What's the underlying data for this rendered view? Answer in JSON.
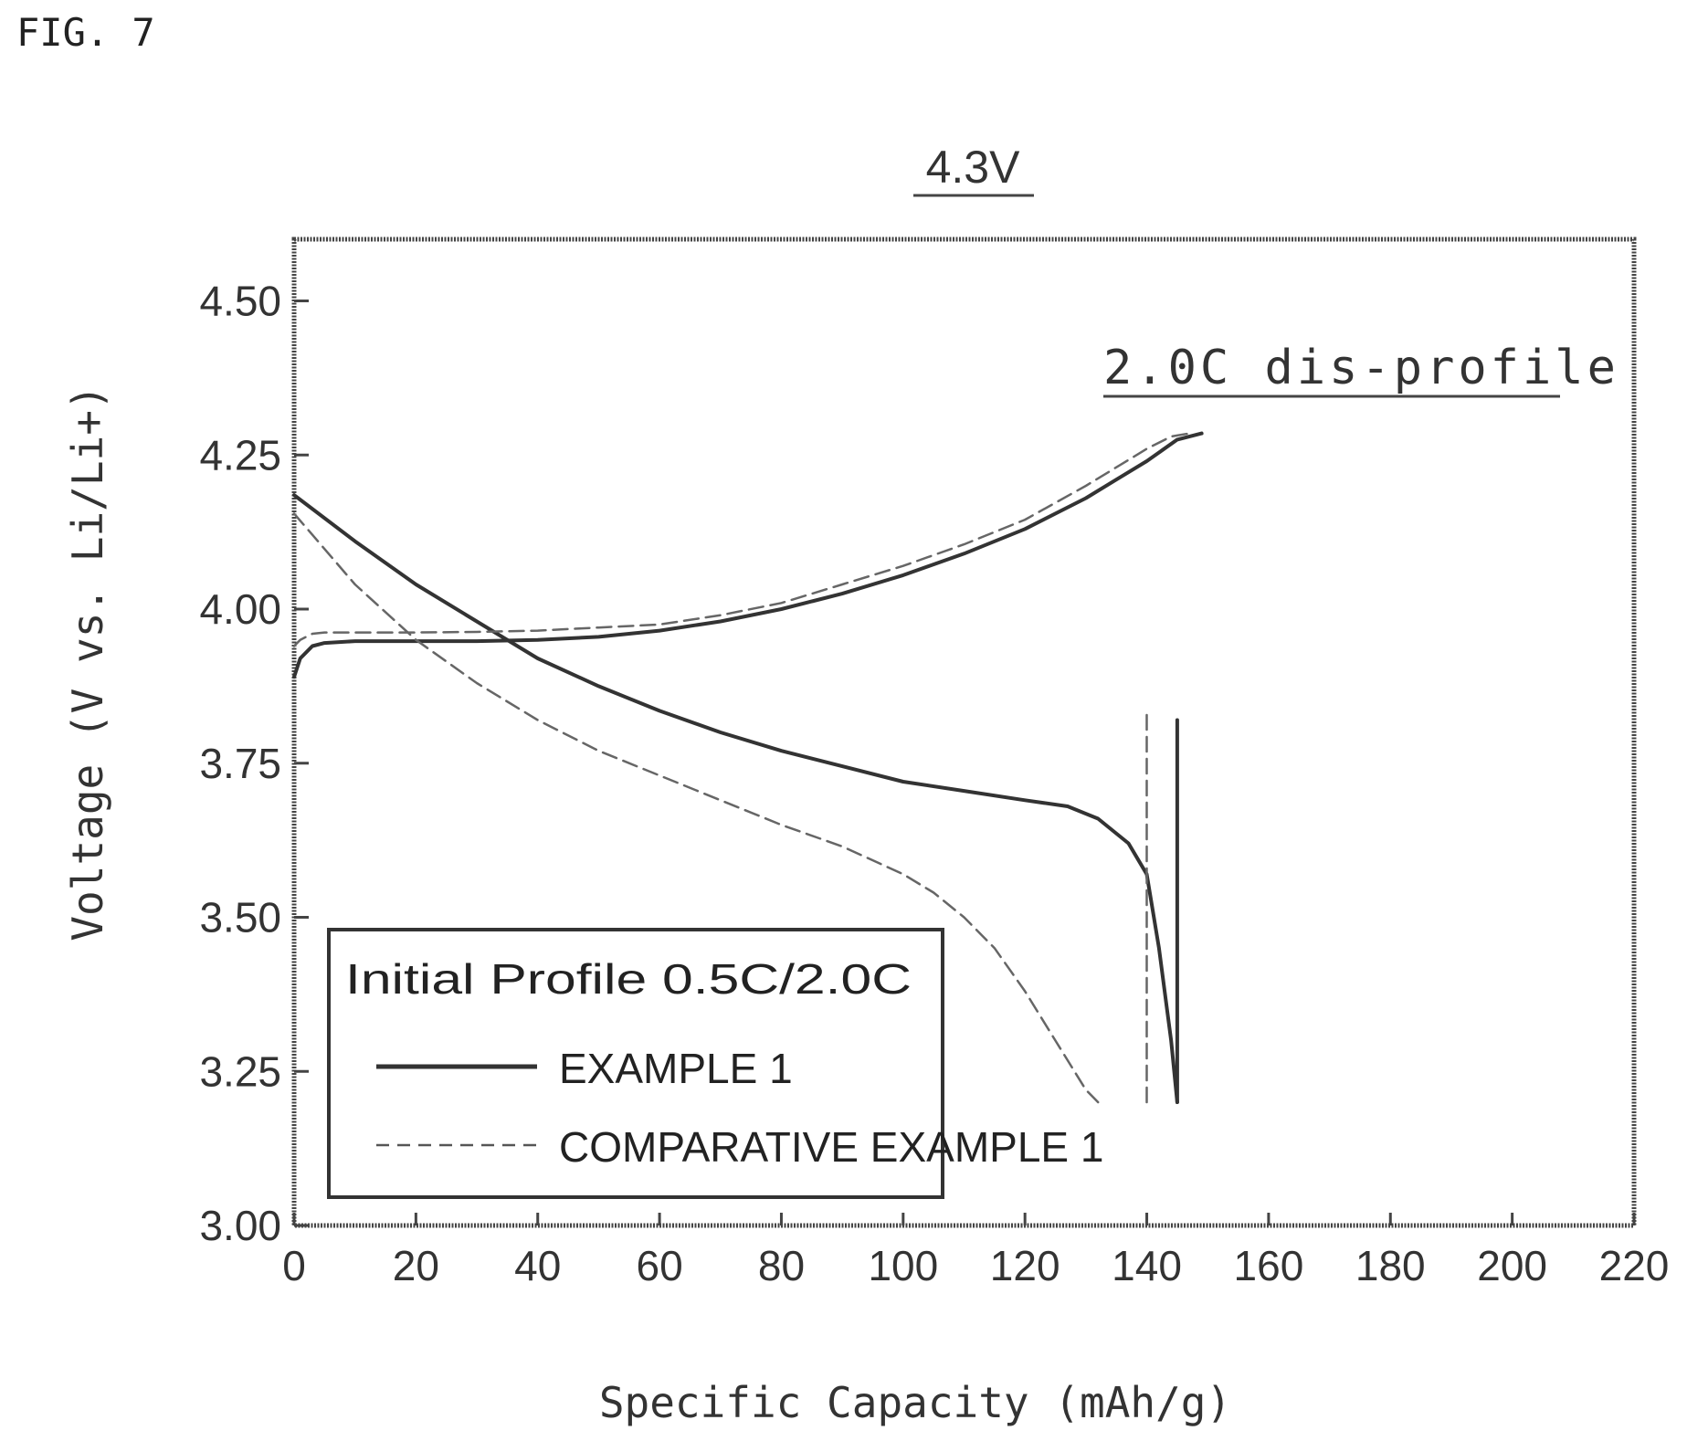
{
  "figure_label": "FIG. 7",
  "chart_data": {
    "type": "line",
    "title": "4.3V",
    "annotation": "2.0C dis-profile",
    "xlabel": "Specific Capacity (mAh/g)",
    "ylabel": "Voltage (V vs. Li/Li+)",
    "xlim": [
      0,
      220
    ],
    "ylim": [
      3.0,
      4.6
    ],
    "x_ticks": [
      0,
      20,
      40,
      60,
      80,
      100,
      120,
      140,
      160,
      180,
      200,
      220
    ],
    "y_ticks": [
      3.0,
      3.25,
      3.5,
      3.75,
      4.0,
      4.25,
      4.5
    ],
    "y_tick_labels": [
      "3.00",
      "3.25",
      "3.50",
      "3.75",
      "4.00",
      "4.25",
      "4.50"
    ],
    "grid": false,
    "legend": {
      "title": "Initial Profile 0.5C/2.0C",
      "position": "bottom-left",
      "entries": [
        "EXAMPLE 1",
        "COMPARATIVE EXAMPLE 1"
      ]
    },
    "series": [
      {
        "name": "EXAMPLE 1",
        "style": "solid",
        "segments": [
          {
            "label": "charge",
            "x": [
              0,
              1,
              3,
              5,
              10,
              20,
              30,
              40,
              50,
              60,
              70,
              80,
              90,
              100,
              110,
              120,
              130,
              135,
              140,
              145,
              149
            ],
            "y": [
              3.89,
              3.92,
              3.94,
              3.945,
              3.948,
              3.948,
              3.948,
              3.95,
              3.955,
              3.965,
              3.98,
              4.0,
              4.025,
              4.055,
              4.09,
              4.13,
              4.18,
              4.21,
              4.24,
              4.275,
              4.285
            ]
          },
          {
            "label": "discharge",
            "x": [
              0,
              10,
              20,
              30,
              40,
              50,
              60,
              70,
              80,
              90,
              100,
              110,
              120,
              127,
              132,
              137,
              140,
              142,
              144,
              145
            ],
            "y": [
              4.185,
              4.11,
              4.04,
              3.98,
              3.92,
              3.875,
              3.835,
              3.8,
              3.77,
              3.745,
              3.72,
              3.705,
              3.69,
              3.68,
              3.66,
              3.62,
              3.57,
              3.45,
              3.3,
              3.2
            ]
          },
          {
            "label": "end",
            "x": [
              145,
              145
            ],
            "y": [
              3.2,
              3.82
            ]
          }
        ]
      },
      {
        "name": "COMPARATIVE EXAMPLE 1",
        "style": "dashed",
        "segments": [
          {
            "label": "charge",
            "x": [
              0,
              1,
              3,
              5,
              10,
              20,
              30,
              40,
              50,
              60,
              70,
              80,
              90,
              100,
              110,
              120,
              130,
              140,
              144,
              147
            ],
            "y": [
              3.94,
              3.95,
              3.96,
              3.962,
              3.962,
              3.962,
              3.963,
              3.965,
              3.97,
              3.975,
              3.99,
              4.01,
              4.04,
              4.07,
              4.105,
              4.145,
              4.2,
              4.26,
              4.28,
              4.285
            ]
          },
          {
            "label": "discharge",
            "x": [
              0,
              10,
              20,
              30,
              40,
              50,
              60,
              70,
              80,
              90,
              100,
              105,
              110,
              115,
              120,
              125,
              130,
              132
            ],
            "y": [
              4.155,
              4.04,
              3.95,
              3.88,
              3.82,
              3.77,
              3.73,
              3.69,
              3.65,
              3.615,
              3.57,
              3.54,
              3.5,
              3.45,
              3.38,
              3.3,
              3.22,
              3.2
            ]
          },
          {
            "label": "end",
            "x": [
              140,
              140
            ],
            "y": [
              3.2,
              3.84
            ]
          }
        ]
      }
    ]
  }
}
